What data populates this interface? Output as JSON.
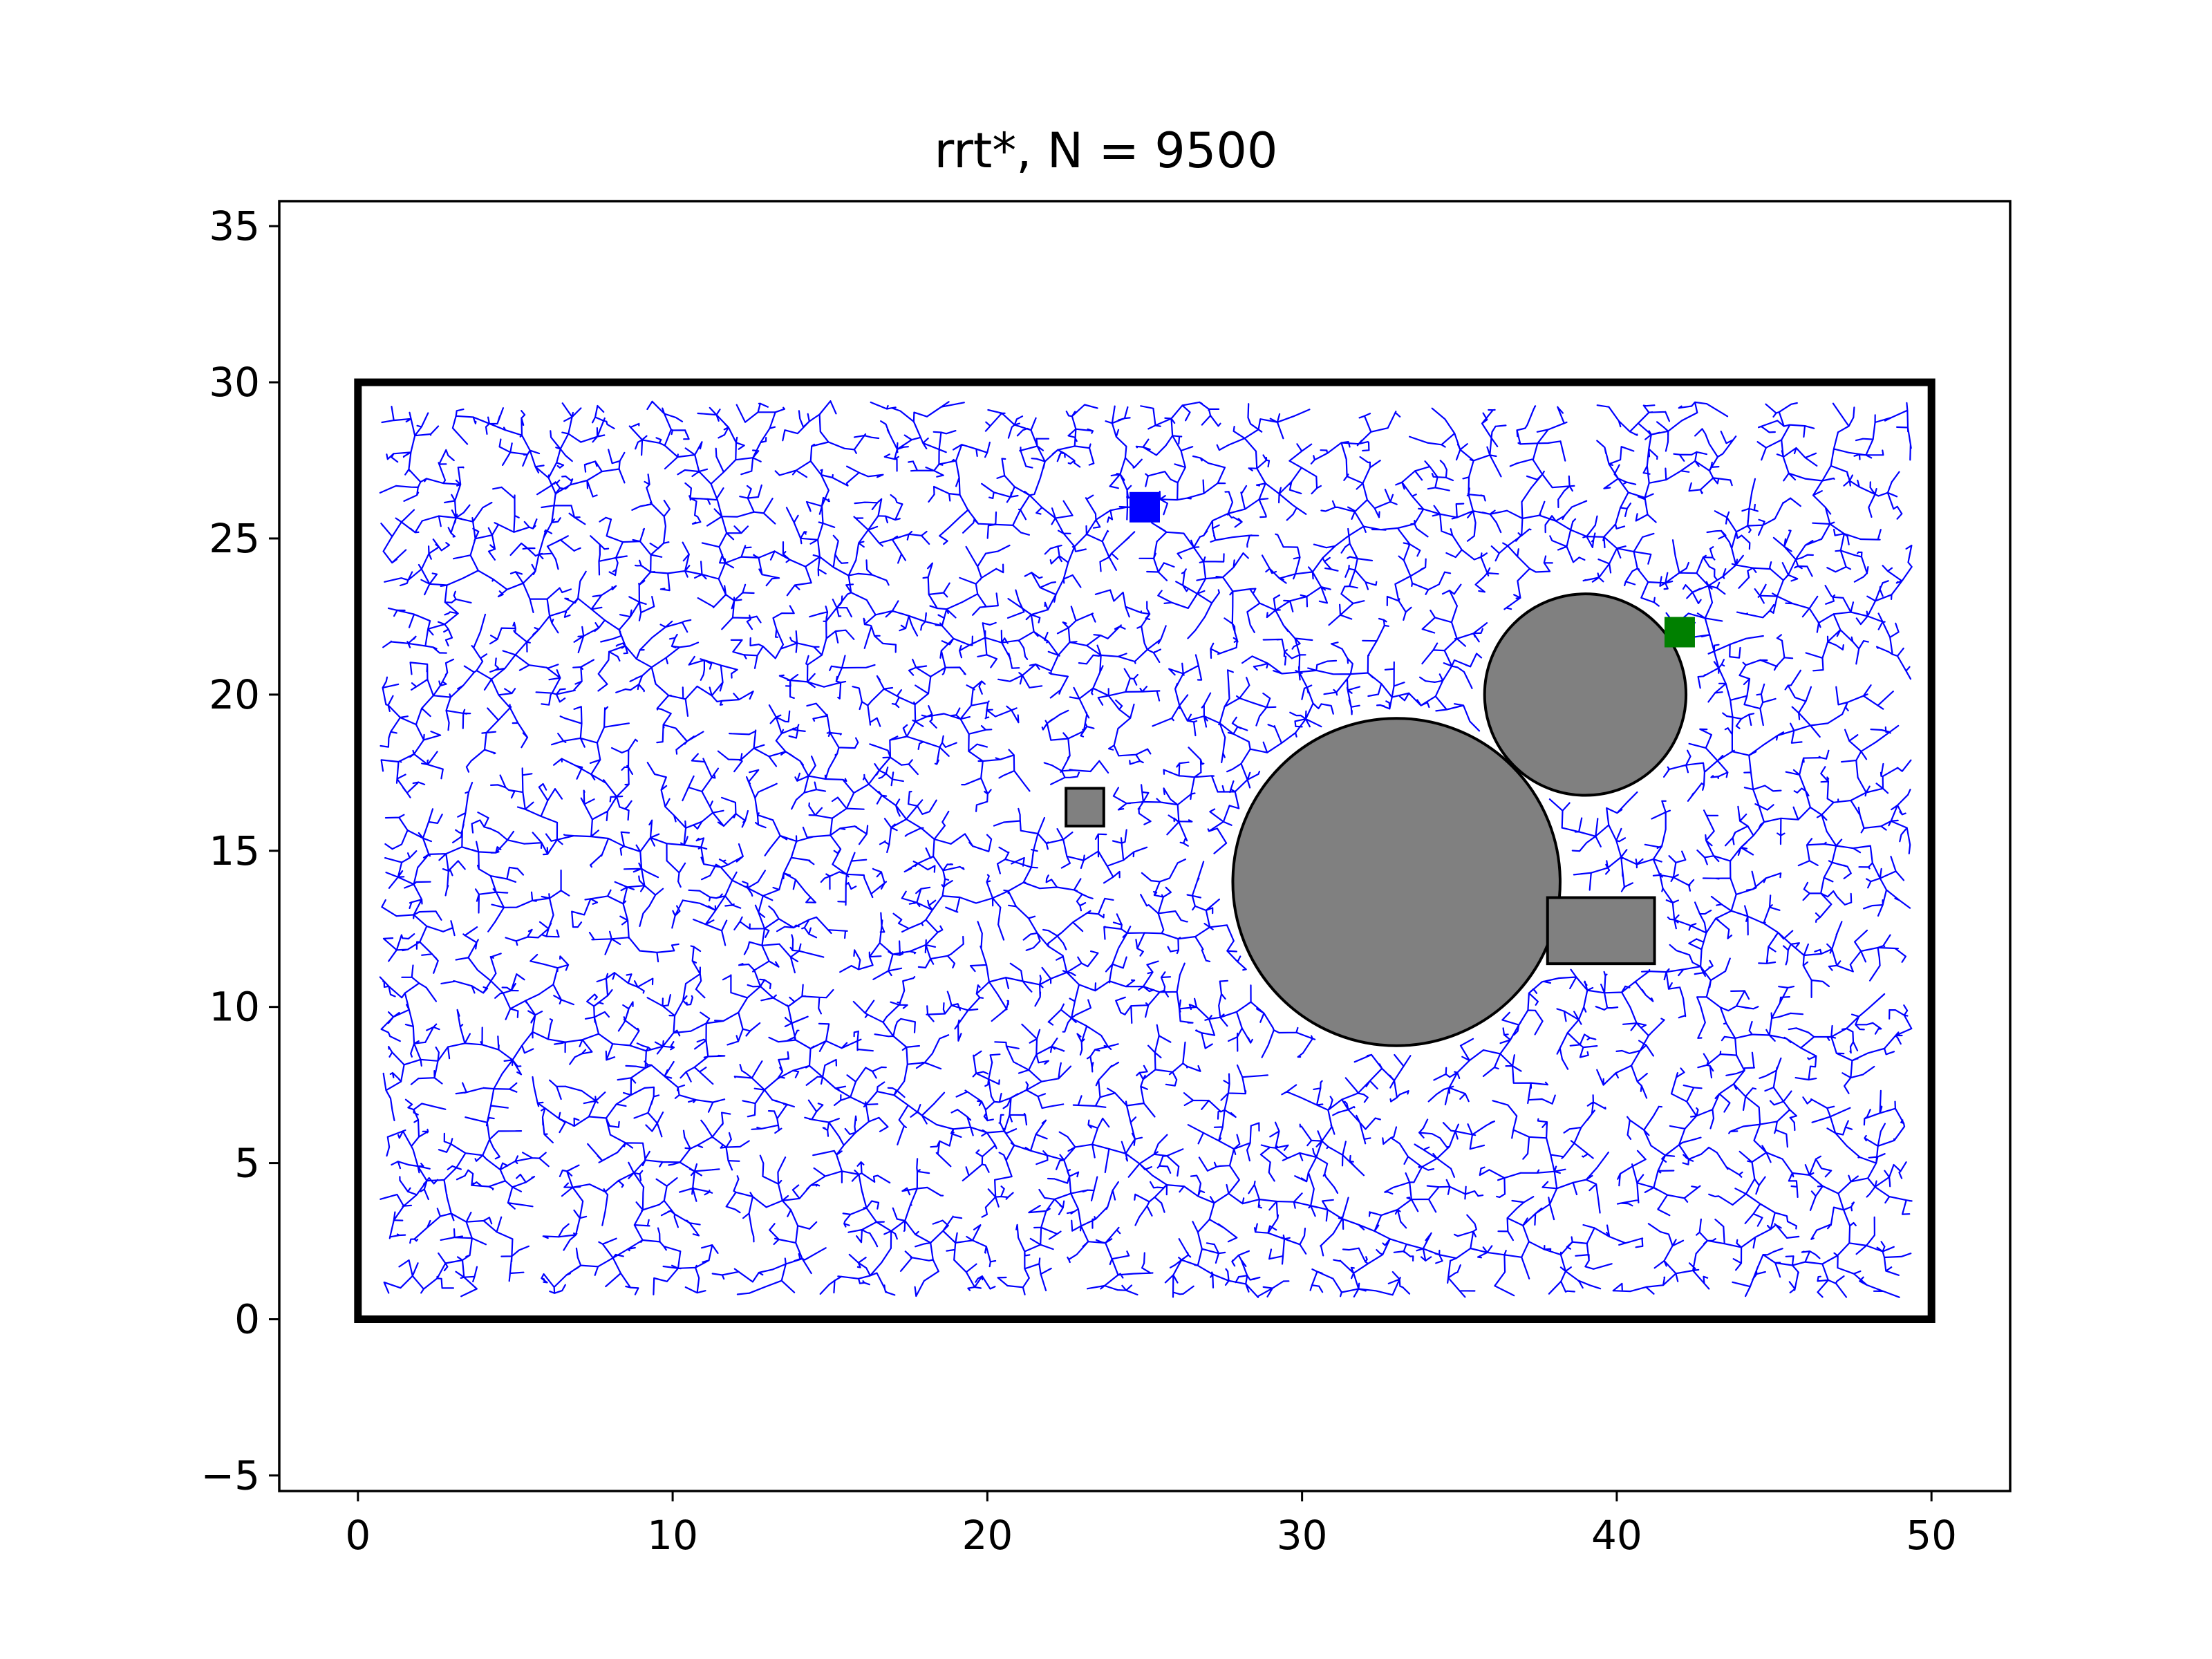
{
  "chart_data": {
    "type": "scatter",
    "title": "rrt*, N = 9500",
    "xlabel": "",
    "ylabel": "",
    "xlim": [
      -2.5,
      52.5
    ],
    "ylim": [
      -5.5,
      35.8
    ],
    "xticks": [
      0,
      10,
      20,
      30,
      40,
      50
    ],
    "yticks": [
      -5,
      0,
      5,
      10,
      15,
      20,
      25,
      30,
      35
    ],
    "grid": false,
    "boundary": {
      "x0": 0,
      "y0": 0,
      "x1": 50,
      "y1": 30,
      "color": "#000000"
    },
    "obstacles": [
      {
        "shape": "circle",
        "cx": 33,
        "cy": 14,
        "r": 5.2,
        "color": "#808080"
      },
      {
        "shape": "circle",
        "cx": 39,
        "cy": 20,
        "r": 3.2,
        "color": "#808080"
      },
      {
        "shape": "rect",
        "x0": 22.5,
        "y0": 15.8,
        "x1": 23.7,
        "y1": 17.0,
        "color": "#808080"
      },
      {
        "shape": "rect",
        "x0": 37.8,
        "y0": 11.4,
        "x1": 41.2,
        "y1": 13.5,
        "color": "#808080"
      }
    ],
    "start": {
      "x": 25,
      "y": 26,
      "color": "#0000ff"
    },
    "goal": {
      "x": 42,
      "y": 22,
      "color": "#008000"
    },
    "tree": {
      "color": "#0000ff",
      "nodes": 9500
    }
  }
}
